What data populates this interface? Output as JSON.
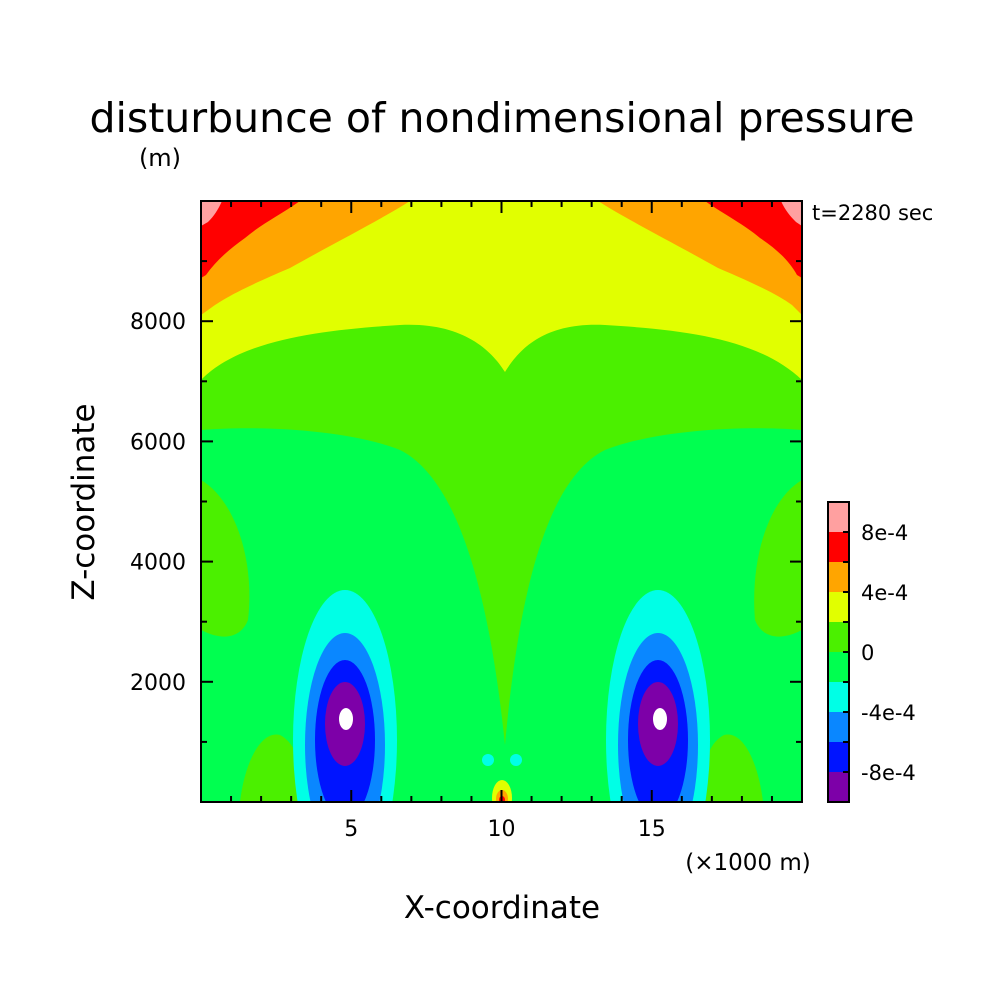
{
  "chart_data": {
    "type": "heatmap",
    "title": "disturbunce of nondimensional pressure",
    "subtitle": "(m)",
    "time_label": "t=2280 sec",
    "xlabel": "X-coordinate",
    "xunit": "(×1000 m)",
    "ylabel": "Z-coordinate",
    "xlim": [
      0,
      20
    ],
    "ylim": [
      0,
      10000
    ],
    "x_ticks": [
      5,
      10,
      15
    ],
    "y_ticks": [
      2000,
      4000,
      6000,
      8000
    ],
    "colorbar": {
      "levels": [
        -0.001,
        -0.0008,
        -0.0006,
        -0.0004,
        -0.0002,
        0,
        0.0002,
        0.0004,
        0.0006,
        0.0008,
        0.001
      ],
      "colors": [
        "#7d00a8",
        "#0014ff",
        "#0a87ff",
        "#00ffe6",
        "#00ff50",
        "#4bf000",
        "#e1ff00",
        "#ffa500",
        "#ff0000",
        "#ffa0a0"
      ],
      "labels": [
        "-8e-4",
        "-4e-4",
        "0",
        "4e-4",
        "8e-4"
      ]
    }
  }
}
